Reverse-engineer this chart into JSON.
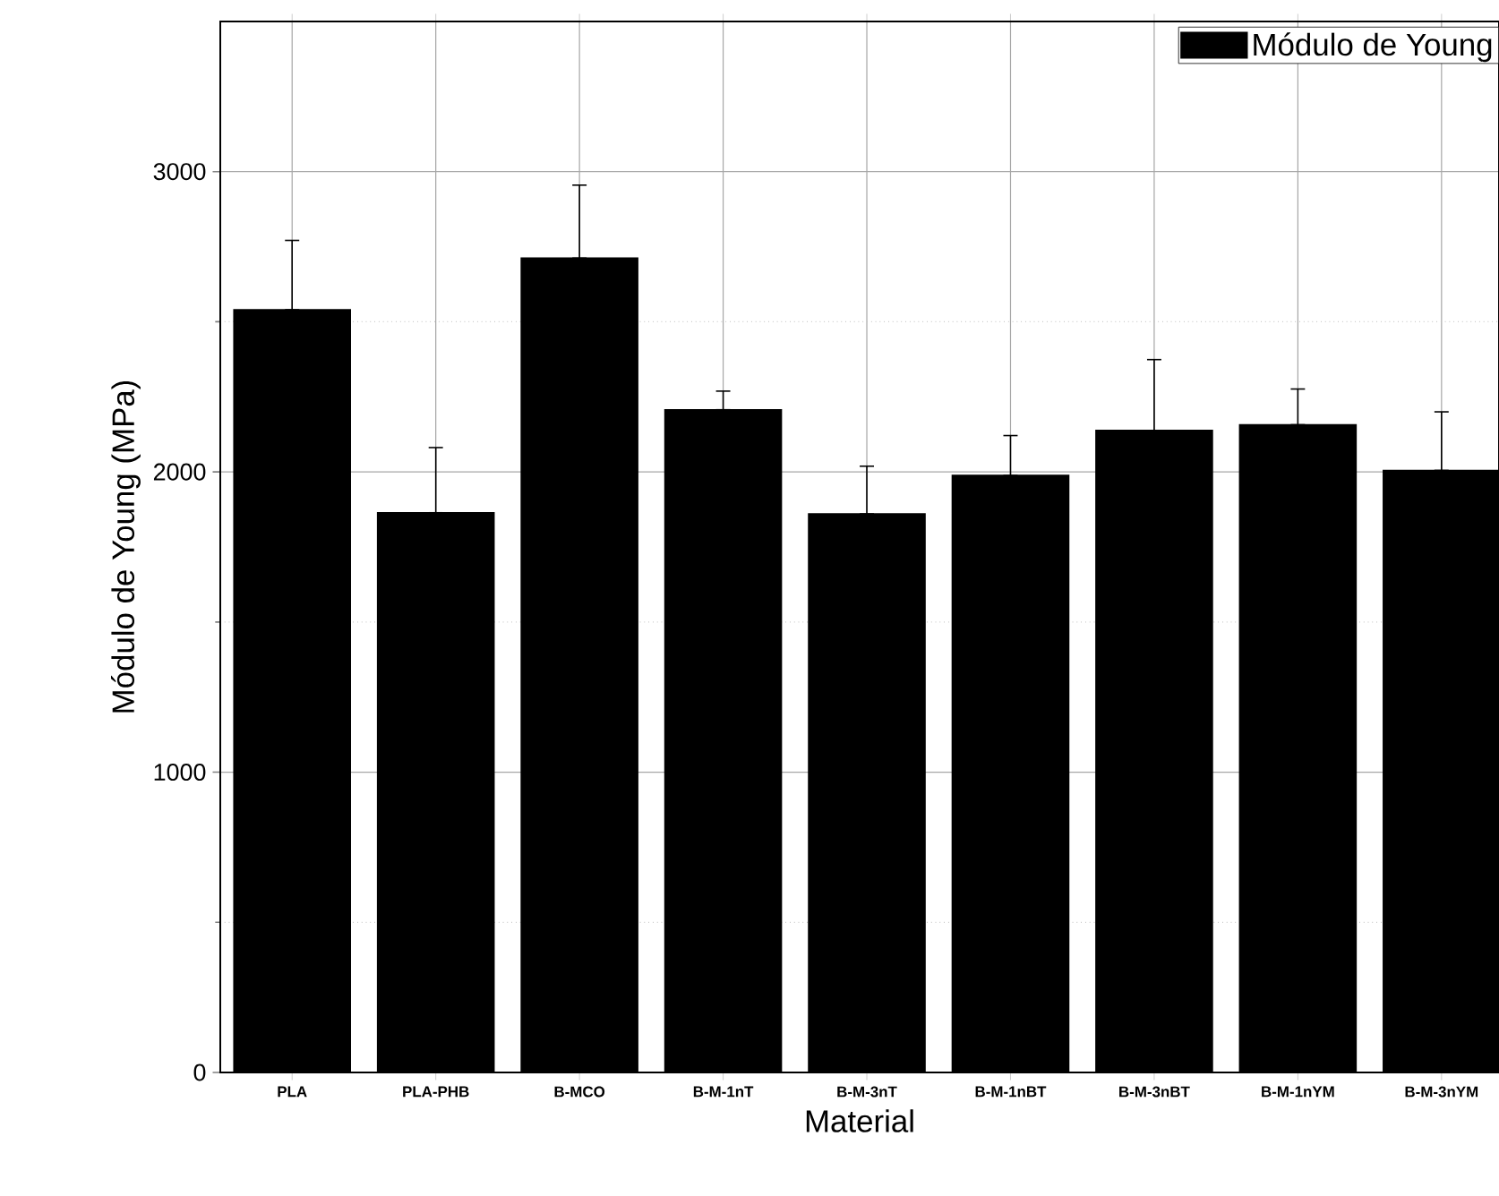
{
  "chart_data": {
    "type": "bar",
    "xlabel": "Material",
    "ylabel": "Módulo de Young (MPa)",
    "categories": [
      "PLA",
      "PLA-PHB",
      "B-MCO",
      "B-M-1nT",
      "B-M-3nT",
      "B-M-1nBT",
      "B-M-3nBT",
      "B-M-1nYM",
      "B-M-3nYM"
    ],
    "series": [
      {
        "name": "Módulo de Young",
        "color": "#000000",
        "values": [
          2540,
          1864,
          2712,
          2207,
          1860,
          1988,
          2138,
          2157,
          2005
        ],
        "errors": [
          [
            2540,
            2771
          ],
          [
            1864,
            2081
          ],
          [
            2712,
            2955
          ],
          [
            2207,
            2269
          ],
          [
            1860,
            2019
          ],
          [
            1988,
            2121
          ],
          [
            2138,
            2374
          ],
          [
            2157,
            2276
          ],
          [
            2005,
            2200
          ]
        ]
      }
    ],
    "ylim": [
      0,
      3500
    ],
    "yticks": [
      0,
      1000,
      2000,
      3000
    ],
    "grid": true,
    "legend": "top right"
  }
}
